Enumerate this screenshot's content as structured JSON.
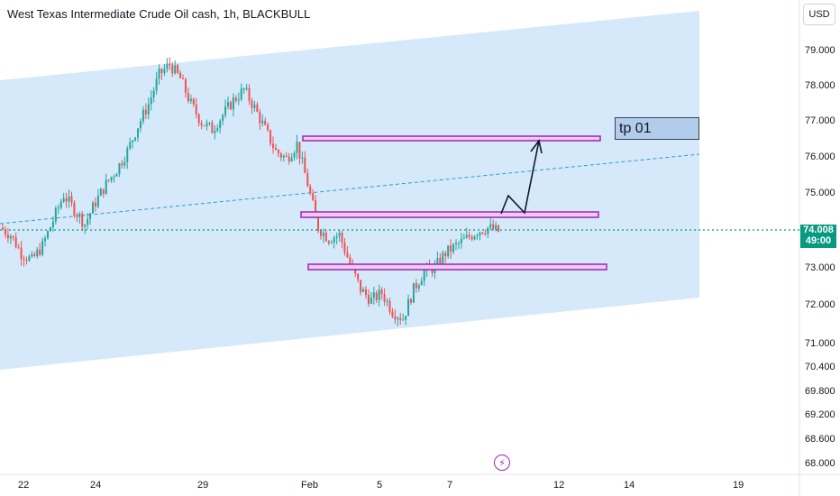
{
  "header": {
    "title": "West Texas Intermediate Crude Oil cash, 1h, BLACKBULL",
    "currency_button": "USD"
  },
  "price_axis": {
    "labels": [
      "79.000",
      "78.000",
      "77.000",
      "76.000",
      "75.000",
      "74.000",
      "73.000",
      "72.000",
      "71.000",
      "70.400",
      "69.800",
      "69.200",
      "68.600",
      "68.000"
    ],
    "current_price": "74.008",
    "countdown": "49:00"
  },
  "time_axis": {
    "labels": [
      "22",
      "24",
      "29",
      "Feb",
      "5",
      "7",
      "12",
      "14",
      "19"
    ]
  },
  "annotation": {
    "target_label": "tp 01"
  },
  "colors": {
    "channel_fill": "#d3e8fb",
    "zone_stroke": "#9c27b0",
    "zone_fill": "#f0c9f5",
    "candle_up": "#26a69a",
    "candle_down": "#ef5350",
    "current_price": "#089981",
    "midline": "#2a9bd4"
  },
  "icons": {
    "alert": "lightning-bolt-icon"
  },
  "chart_data": {
    "type": "candlestick",
    "title": "West Texas Intermediate Crude Oil cash, 1h, BLACKBULL",
    "currency": "USD",
    "y_ticks": [
      79.0,
      78.0,
      77.0,
      76.0,
      75.0,
      74.0,
      73.0,
      72.0,
      71.0,
      70.4,
      69.8,
      69.2,
      68.6,
      68.0
    ],
    "x_ticks": [
      "22",
      "24",
      "29",
      "Feb",
      "5",
      "7",
      "12",
      "14",
      "19"
    ],
    "last_price": 74.008,
    "horizontal_zones": [
      {
        "level": 76.5
      },
      {
        "level": 74.4
      },
      {
        "level": 73.05
      }
    ],
    "target": {
      "label": "tp 01",
      "level": 76.5
    },
    "price_path_close_sample": [
      74.1,
      73.9,
      73.4,
      73.2,
      73.6,
      74.3,
      75.0,
      74.6,
      74.2,
      74.8,
      75.3,
      75.7,
      76.2,
      76.9,
      77.5,
      78.3,
      78.6,
      78.2,
      77.5,
      77.0,
      76.8,
      77.2,
      77.6,
      77.9,
      77.4,
      76.8,
      76.2,
      76.0,
      76.4,
      75.3,
      74.1,
      73.8,
      73.9,
      73.1,
      72.4,
      72.1,
      72.3,
      71.8,
      71.6,
      72.4,
      72.9,
      73.0,
      73.4,
      73.6,
      73.8,
      74.0,
      74.1,
      74.0
    ]
  }
}
